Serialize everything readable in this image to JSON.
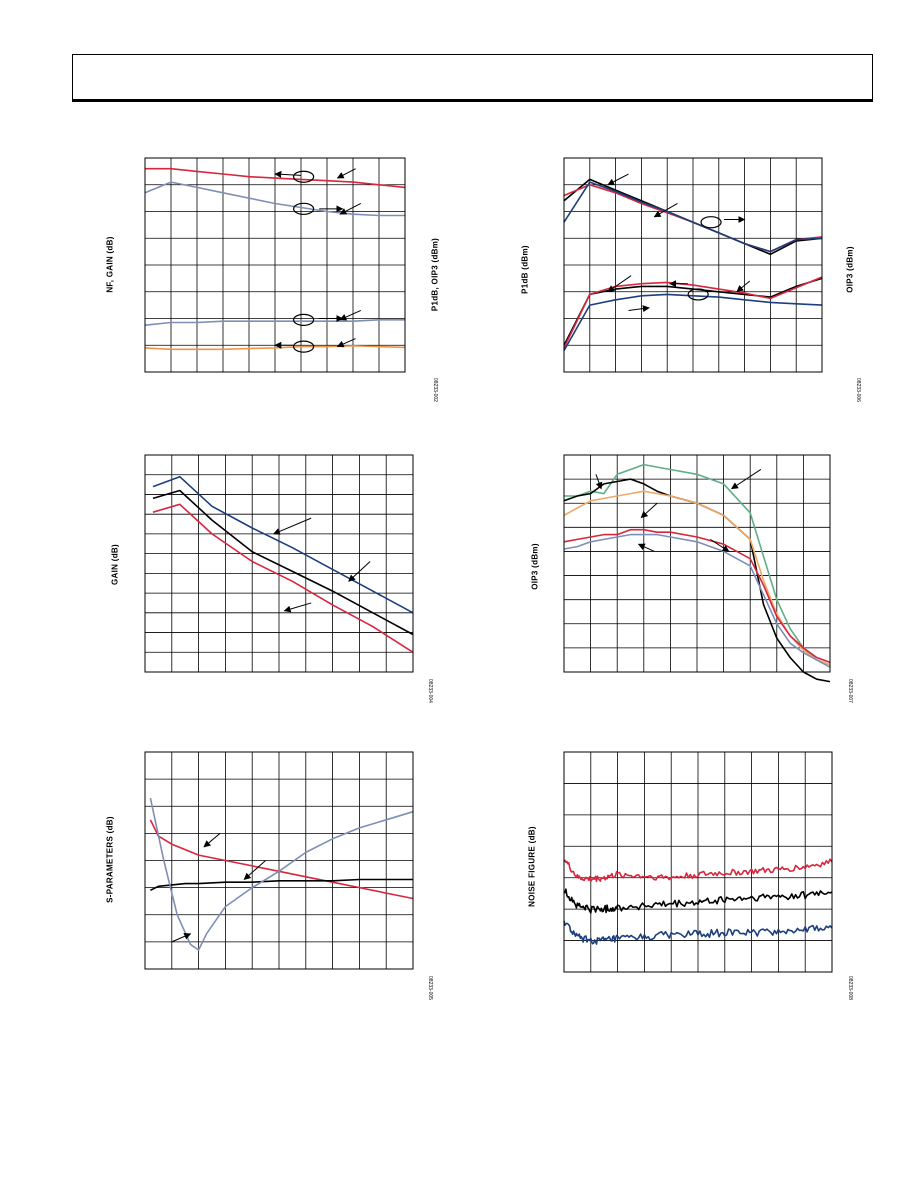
{
  "colors": {
    "red": "#d7263d",
    "blue": "#1d3f7e",
    "black": "#000000",
    "gray": "#7d8fb5",
    "orange": "#f0944a",
    "peach": "#f0a868",
    "green": "#5fae85"
  },
  "chart_data": [
    {
      "id": "nf-gain",
      "type": "line",
      "ylabel": "NF, GAIN (dB)",
      "ylabel2": "P1dB, OIP3 (dBm)",
      "fig_id": "08233-002",
      "xlim": [
        0,
        10
      ],
      "ylim": [
        0,
        8
      ],
      "grid": true,
      "x_divisions": 10,
      "y_divisions": 8,
      "series": [
        {
          "color": "red",
          "x": [
            0,
            1,
            2,
            3,
            4,
            5,
            6,
            7,
            8,
            9,
            10
          ],
          "y": [
            7.6,
            7.6,
            7.5,
            7.4,
            7.3,
            7.25,
            7.2,
            7.15,
            7.1,
            7.0,
            6.9
          ]
        },
        {
          "color": "gray",
          "x": [
            0,
            1,
            2,
            3,
            4,
            5,
            6,
            7,
            8,
            9,
            10
          ],
          "y": [
            6.7,
            7.1,
            6.9,
            6.7,
            6.5,
            6.3,
            6.15,
            6.0,
            5.9,
            5.85,
            5.85
          ]
        },
        {
          "color": "gray",
          "x": [
            0,
            1,
            2,
            3,
            4,
            5,
            6,
            7,
            8,
            9,
            10
          ],
          "y": [
            1.75,
            1.85,
            1.85,
            1.9,
            1.9,
            1.9,
            1.9,
            1.9,
            1.9,
            1.95,
            1.95
          ]
        },
        {
          "color": "orange",
          "x": [
            0,
            1,
            2,
            3,
            4,
            5,
            6,
            7,
            8,
            9,
            10
          ],
          "y": [
            0.9,
            0.85,
            0.85,
            0.85,
            0.88,
            0.9,
            0.95,
            0.95,
            0.98,
            0.95,
            0.92
          ]
        }
      ],
      "annotations": [
        {
          "type": "ellipse",
          "x": 6.1,
          "y": 7.3
        },
        {
          "type": "ellipse",
          "x": 6.1,
          "y": 6.1
        },
        {
          "type": "ellipse",
          "x": 6.1,
          "y": 1.95
        },
        {
          "type": "ellipse",
          "x": 6.1,
          "y": 0.95
        },
        {
          "type": "arrow",
          "x1": 6.0,
          "y1": 7.35,
          "x2": 5.0,
          "y2": 7.4
        },
        {
          "type": "arrow",
          "x1": 8.1,
          "y1": 7.6,
          "x2": 7.4,
          "y2": 7.25
        },
        {
          "type": "arrow",
          "x1": 6.7,
          "y1": 6.1,
          "x2": 7.6,
          "y2": 6.1
        },
        {
          "type": "arrow",
          "x1": 8.3,
          "y1": 6.3,
          "x2": 7.5,
          "y2": 5.9
        },
        {
          "type": "arrow",
          "x1": 6.7,
          "y1": 2.0,
          "x2": 7.6,
          "y2": 2.0
        },
        {
          "type": "arrow",
          "x1": 8.3,
          "y1": 2.3,
          "x2": 7.5,
          "y2": 1.95
        },
        {
          "type": "arrow",
          "x1": 5.7,
          "y1": 1.0,
          "x2": 5.0,
          "y2": 1.0
        },
        {
          "type": "arrow",
          "x1": 8.1,
          "y1": 1.25,
          "x2": 7.4,
          "y2": 0.95
        }
      ]
    },
    {
      "id": "p1db-oip3",
      "type": "line",
      "ylabel": "P1dB (dBm)",
      "ylabel2": "OIP3 (dBm)",
      "fig_id": "08233-006",
      "xlim": [
        0,
        10
      ],
      "ylim": [
        0,
        8
      ],
      "grid": true,
      "x_divisions": 10,
      "y_divisions": 8,
      "series": [
        {
          "color": "black",
          "x": [
            0,
            1,
            2,
            3,
            4,
            5,
            6,
            7,
            8,
            9,
            10
          ],
          "y": [
            6.4,
            7.2,
            6.8,
            6.4,
            6.0,
            5.6,
            5.2,
            4.8,
            4.4,
            4.9,
            5.0
          ]
        },
        {
          "color": "red",
          "x": [
            0,
            1,
            2,
            3,
            4,
            5,
            6,
            7,
            8,
            9,
            10
          ],
          "y": [
            6.6,
            7.0,
            6.7,
            6.3,
            5.95,
            5.6,
            5.2,
            4.8,
            4.5,
            4.95,
            5.05
          ]
        },
        {
          "color": "blue",
          "x": [
            0,
            1,
            2,
            3,
            4,
            5,
            6,
            7,
            8,
            9,
            10
          ],
          "y": [
            5.6,
            7.1,
            6.75,
            6.35,
            6.0,
            5.6,
            5.2,
            4.8,
            4.5,
            4.95,
            5.0
          ]
        },
        {
          "color": "black",
          "x": [
            0,
            1,
            2,
            3,
            4,
            5,
            6,
            7,
            8,
            9,
            10
          ],
          "y": [
            1.0,
            2.9,
            3.1,
            3.2,
            3.2,
            3.1,
            3.0,
            2.9,
            2.8,
            3.2,
            3.5
          ]
        },
        {
          "color": "red",
          "x": [
            0,
            1,
            2,
            3,
            4,
            5,
            6,
            7,
            8,
            9,
            10
          ],
          "y": [
            0.9,
            2.9,
            3.2,
            3.3,
            3.35,
            3.25,
            3.1,
            2.95,
            2.75,
            3.15,
            3.55
          ]
        },
        {
          "color": "blue",
          "x": [
            0,
            1,
            2,
            3,
            4,
            5,
            6,
            7,
            8,
            9,
            10
          ],
          "y": [
            0.8,
            2.5,
            2.7,
            2.85,
            2.9,
            2.85,
            2.8,
            2.7,
            2.6,
            2.55,
            2.5
          ]
        }
      ],
      "annotations": [
        {
          "type": "ellipse",
          "x": 5.7,
          "y": 5.6
        },
        {
          "type": "ellipse",
          "x": 5.2,
          "y": 2.9
        },
        {
          "type": "arrow",
          "x1": 2.5,
          "y1": 7.4,
          "x2": 1.7,
          "y2": 7.0
        },
        {
          "type": "arrow",
          "x1": 4.4,
          "y1": 6.3,
          "x2": 3.5,
          "y2": 5.8
        },
        {
          "type": "arrow",
          "x1": 6.2,
          "y1": 5.7,
          "x2": 7.0,
          "y2": 5.7
        },
        {
          "type": "arrow",
          "x1": 2.6,
          "y1": 3.6,
          "x2": 1.7,
          "y2": 3.0
        },
        {
          "type": "arrow",
          "x1": 4.8,
          "y1": 3.3,
          "x2": 4.1,
          "y2": 3.3
        },
        {
          "type": "arrow",
          "x1": 7.2,
          "y1": 3.4,
          "x2": 6.7,
          "y2": 3.0
        },
        {
          "type": "arrow",
          "x1": 2.5,
          "y1": 2.3,
          "x2": 3.3,
          "y2": 2.4
        }
      ]
    },
    {
      "id": "gain",
      "type": "line",
      "ylabel": "GAIN (dB)",
      "fig_id": "08233-004",
      "xlim": [
        0,
        10
      ],
      "ylim": [
        0,
        11
      ],
      "grid": true,
      "x_divisions": 10,
      "y_divisions": 11,
      "series": [
        {
          "color": "blue",
          "x": [
            0.3,
            1.3,
            2.5,
            4.0,
            5.5,
            7.0,
            8.5,
            10
          ],
          "y": [
            9.4,
            9.9,
            8.4,
            7.3,
            6.3,
            5.2,
            4.1,
            3.0
          ]
        },
        {
          "color": "black",
          "x": [
            0.3,
            1.3,
            2.5,
            4.0,
            5.5,
            7.0,
            8.5,
            10
          ],
          "y": [
            8.8,
            9.2,
            7.7,
            6.1,
            5.1,
            4.1,
            3.0,
            1.9
          ]
        },
        {
          "color": "red",
          "x": [
            0.3,
            1.3,
            2.5,
            4.0,
            5.5,
            7.0,
            8.5,
            10
          ],
          "y": [
            8.1,
            8.5,
            7.0,
            5.6,
            4.6,
            3.4,
            2.3,
            1.0
          ]
        }
      ],
      "annotations": [
        {
          "type": "arrow",
          "x1": 6.2,
          "y1": 7.8,
          "x2": 4.8,
          "y2": 7.0
        },
        {
          "type": "arrow",
          "x1": 8.4,
          "y1": 5.6,
          "x2": 7.6,
          "y2": 4.6
        },
        {
          "type": "arrow",
          "x1": 6.2,
          "y1": 3.5,
          "x2": 5.2,
          "y2": 3.1
        }
      ]
    },
    {
      "id": "oip3",
      "type": "line",
      "ylabel": "OIP3 (dBm)",
      "fig_id": "08233-007",
      "xlim": [
        0,
        10
      ],
      "ylim": [
        0,
        9
      ],
      "grid": true,
      "x_divisions": 10,
      "y_divisions": 9,
      "series": [
        {
          "color": "green",
          "x": [
            0,
            0.5,
            1.0,
            1.5,
            2.0,
            2.5,
            3.0,
            3.5,
            4.0,
            5.0,
            6.0,
            7.0,
            7.5,
            8.0,
            8.5,
            9.0,
            9.5,
            10
          ],
          "y": [
            7.3,
            7.3,
            7.5,
            7.4,
            8.2,
            8.4,
            8.6,
            8.5,
            8.4,
            8.2,
            7.8,
            6.6,
            4.8,
            3.0,
            1.8,
            1.0,
            0.5,
            0.3
          ]
        },
        {
          "color": "black",
          "x": [
            0,
            0.5,
            1.0,
            1.5,
            2.0,
            2.5,
            3.0,
            3.5,
            4.0,
            5.0,
            6.0,
            7.0,
            7.5,
            8.0,
            8.5,
            9.0,
            9.5,
            10
          ],
          "y": [
            7.1,
            7.3,
            7.4,
            7.8,
            7.9,
            8.0,
            7.8,
            7.5,
            7.3,
            7.0,
            6.5,
            5.5,
            2.8,
            1.4,
            0.6,
            0.0,
            -0.3,
            -0.4
          ]
        },
        {
          "color": "peach",
          "x": [
            0,
            0.5,
            1.0,
            1.5,
            2.0,
            2.5,
            3.0,
            3.5,
            4.0,
            5.0,
            6.0,
            7.0,
            7.5,
            8.0,
            8.5,
            9.0,
            9.5,
            10
          ],
          "y": [
            6.5,
            6.8,
            7.1,
            7.2,
            7.3,
            7.4,
            7.5,
            7.4,
            7.3,
            7.0,
            6.5,
            5.5,
            3.8,
            2.4,
            1.5,
            0.9,
            0.5,
            0.3
          ]
        },
        {
          "color": "red",
          "x": [
            0,
            0.5,
            1.0,
            1.5,
            2.0,
            2.5,
            3.0,
            3.5,
            4.0,
            5.0,
            6.0,
            7.0,
            7.5,
            8.0,
            8.5,
            9.0,
            9.5,
            10
          ],
          "y": [
            5.4,
            5.5,
            5.6,
            5.7,
            5.7,
            5.9,
            5.9,
            5.8,
            5.8,
            5.6,
            5.3,
            4.7,
            3.6,
            2.3,
            1.5,
            1.0,
            0.6,
            0.4
          ]
        },
        {
          "color": "gray",
          "x": [
            0,
            0.5,
            1.0,
            1.5,
            2.0,
            2.5,
            3.0,
            3.5,
            4.0,
            5.0,
            6.0,
            7.0,
            7.5,
            8.0,
            8.5,
            9.0,
            9.5,
            10
          ],
          "y": [
            5.1,
            5.2,
            5.4,
            5.5,
            5.6,
            5.7,
            5.7,
            5.7,
            5.6,
            5.4,
            5.0,
            4.4,
            3.2,
            2.0,
            1.2,
            0.8,
            0.5,
            0.2
          ]
        }
      ],
      "annotations": [
        {
          "type": "arrow",
          "x1": 1.2,
          "y1": 8.2,
          "x2": 1.4,
          "y2": 7.6
        },
        {
          "type": "arrow",
          "x1": 3.5,
          "y1": 7.0,
          "x2": 2.9,
          "y2": 6.4
        },
        {
          "type": "arrow",
          "x1": 7.4,
          "y1": 8.4,
          "x2": 6.3,
          "y2": 7.6
        },
        {
          "type": "arrow",
          "x1": 3.4,
          "y1": 5.0,
          "x2": 2.8,
          "y2": 5.3
        },
        {
          "type": "arrow",
          "x1": 5.5,
          "y1": 5.5,
          "x2": 6.2,
          "y2": 5.0
        }
      ]
    },
    {
      "id": "s-params",
      "type": "line",
      "ylabel": "S-PARAMETERS (dB)",
      "fig_id": "08233-005",
      "xlim": [
        0,
        10
      ],
      "ylim": [
        0,
        8
      ],
      "grid": true,
      "x_divisions": 10,
      "y_divisions": 8,
      "series": [
        {
          "color": "red",
          "x": [
            0.2,
            0.5,
            1.0,
            1.5,
            2.0,
            3.0,
            4.0,
            5.0,
            6.0,
            7.0,
            8.0,
            9.0,
            10
          ],
          "y": [
            5.5,
            4.9,
            4.6,
            4.4,
            4.2,
            4.0,
            3.8,
            3.6,
            3.4,
            3.2,
            3.0,
            2.8,
            2.6
          ]
        },
        {
          "color": "black",
          "x": [
            0.2,
            0.5,
            1.0,
            1.5,
            2.0,
            3.0,
            4.0,
            5.0,
            6.0,
            7.0,
            8.0,
            9.0,
            10
          ],
          "y": [
            2.9,
            3.05,
            3.1,
            3.15,
            3.15,
            3.2,
            3.2,
            3.25,
            3.25,
            3.25,
            3.3,
            3.3,
            3.3
          ]
        },
        {
          "color": "gray",
          "x": [
            0.2,
            0.7,
            1.2,
            1.7,
            2.0,
            2.3,
            3.0,
            4.0,
            5.0,
            6.0,
            7.0,
            8.0,
            9.0,
            10
          ],
          "y": [
            6.3,
            4.0,
            2.0,
            0.9,
            0.7,
            1.3,
            2.3,
            3.0,
            3.6,
            4.3,
            4.8,
            5.2,
            5.5,
            5.8
          ]
        }
      ],
      "annotations": [
        {
          "type": "arrow",
          "x1": 2.8,
          "y1": 5.0,
          "x2": 2.2,
          "y2": 4.5
        },
        {
          "type": "arrow",
          "x1": 4.5,
          "y1": 4.0,
          "x2": 3.7,
          "y2": 3.3
        },
        {
          "type": "arrow",
          "x1": 1.0,
          "y1": 1.0,
          "x2": 1.7,
          "y2": 1.3
        }
      ]
    },
    {
      "id": "noise-figure",
      "type": "line",
      "ylabel": "NOISE FIGURE (dB)",
      "fig_id": "08233-008",
      "xlim": [
        0,
        10
      ],
      "ylim": [
        0,
        7
      ],
      "grid": true,
      "x_divisions": 10,
      "y_divisions": 7,
      "series": [
        {
          "color": "red",
          "noise": 0.1,
          "x": [
            0,
            0.5,
            1.0,
            1.5,
            2.0,
            3.0,
            4.0,
            5.0,
            6.0,
            7.0,
            8.0,
            9.0,
            10
          ],
          "y": [
            3.6,
            3.0,
            2.95,
            3.0,
            3.1,
            3.05,
            3.0,
            3.1,
            3.15,
            3.2,
            3.25,
            3.35,
            3.5
          ]
        },
        {
          "color": "black",
          "noise": 0.12,
          "x": [
            0,
            0.5,
            1.0,
            1.5,
            2.0,
            3.0,
            4.0,
            5.0,
            6.0,
            7.0,
            8.0,
            9.0,
            10
          ],
          "y": [
            2.6,
            2.1,
            2.0,
            2.0,
            2.05,
            2.1,
            2.15,
            2.2,
            2.3,
            2.35,
            2.4,
            2.45,
            2.55
          ]
        },
        {
          "color": "blue",
          "noise": 0.12,
          "x": [
            0,
            0.5,
            1.0,
            1.5,
            2.0,
            3.0,
            4.0,
            5.0,
            6.0,
            7.0,
            8.0,
            9.0,
            10
          ],
          "y": [
            1.6,
            1.1,
            1.0,
            1.0,
            1.05,
            1.1,
            1.2,
            1.2,
            1.25,
            1.25,
            1.3,
            1.35,
            1.4
          ]
        }
      ],
      "annotations": []
    }
  ]
}
